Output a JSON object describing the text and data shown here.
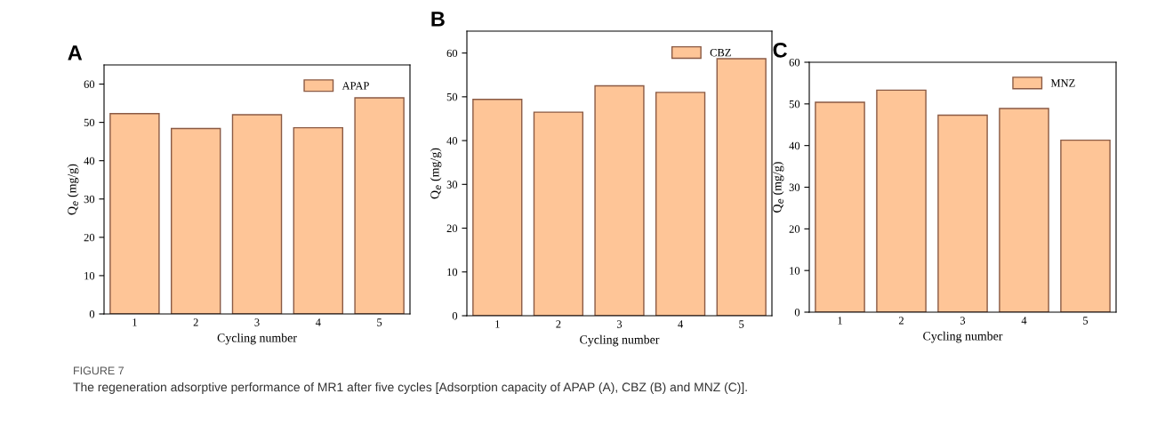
{
  "chart_data": [
    {
      "type": "bar",
      "title": "A",
      "xlabel": "Cycling number",
      "ylabel": "Q$_{e}$ (mg/g)",
      "categories": [
        "1",
        "2",
        "3",
        "4",
        "5"
      ],
      "series": [
        {
          "name": "APAP",
          "color": "#fec597",
          "values": [
            52.3,
            48.4,
            52.0,
            48.6,
            56.4
          ]
        }
      ],
      "ylim": [
        0,
        65
      ],
      "yticks": [
        0,
        10,
        20,
        30,
        40,
        50,
        60
      ],
      "legend": "top right",
      "grid": false,
      "annotations": [
        "FIGURE 7",
        "The regeneration adsorptive performance of MR1 after five cycles [Adsorption capacity of APAP (A), CBZ (B) and MNZ (C)]."
      ]
    },
    {
      "type": "bar",
      "title": "B",
      "xlabel": "Cycling number",
      "ylabel": "Q$_{e}$ (mg/g)",
      "categories": [
        "1",
        "2",
        "3",
        "4",
        "5"
      ],
      "series": [
        {
          "name": "CBZ",
          "color": "#fec597",
          "values": [
            49.4,
            46.5,
            52.5,
            51.0,
            58.7
          ]
        }
      ],
      "ylim": [
        0,
        65
      ],
      "yticks": [
        0,
        10,
        20,
        30,
        40,
        50,
        60
      ],
      "legend": "top right",
      "grid": false
    },
    {
      "type": "bar",
      "title": "C",
      "xlabel": "Cycling number",
      "ylabel": "Q$_{e}$ (mg/g)",
      "categories": [
        "1",
        "2",
        "3",
        "4",
        "5"
      ],
      "series": [
        {
          "name": "MNZ",
          "color": "#fec597",
          "values": [
            50.4,
            53.3,
            47.3,
            48.9,
            41.3
          ]
        }
      ],
      "ylim": [
        0,
        60
      ],
      "yticks": [
        0,
        10,
        20,
        30,
        40,
        50,
        60
      ],
      "legend": "top right",
      "grid": false
    }
  ]
}
